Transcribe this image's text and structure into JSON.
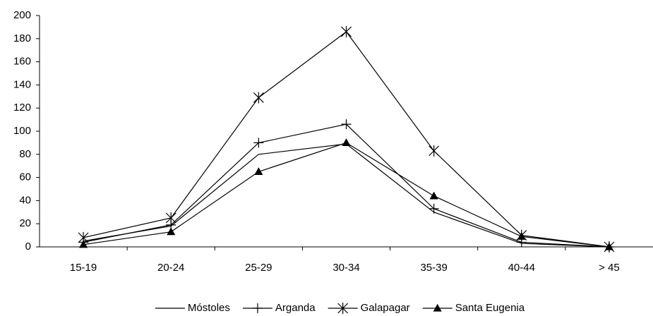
{
  "chart_data": {
    "type": "line",
    "categories": [
      "15-19",
      "20-24",
      "25-29",
      "30-34",
      "35-39",
      "40-44",
      "> 45"
    ],
    "series": [
      {
        "name": "Móstoles",
        "color": "#000000",
        "marker": "none",
        "values": [
          5,
          18,
          80,
          89,
          30,
          3,
          0
        ]
      },
      {
        "name": "Arganda",
        "color": "#000000",
        "marker": "plus",
        "values": [
          4,
          19,
          90,
          106,
          33,
          4,
          0
        ]
      },
      {
        "name": "Galapagar",
        "color": "#000000",
        "marker": "x",
        "values": [
          8,
          25,
          129,
          186,
          83,
          10,
          0
        ]
      },
      {
        "name": "Santa Eugenia",
        "color": "#000000",
        "marker": "triangle",
        "values": [
          2,
          13,
          65,
          90,
          44,
          9,
          0
        ]
      }
    ],
    "ylim": [
      0,
      200
    ],
    "yticks": [
      0,
      20,
      40,
      60,
      80,
      100,
      120,
      140,
      160,
      180,
      200
    ],
    "grid": false,
    "legend": "bottom"
  }
}
